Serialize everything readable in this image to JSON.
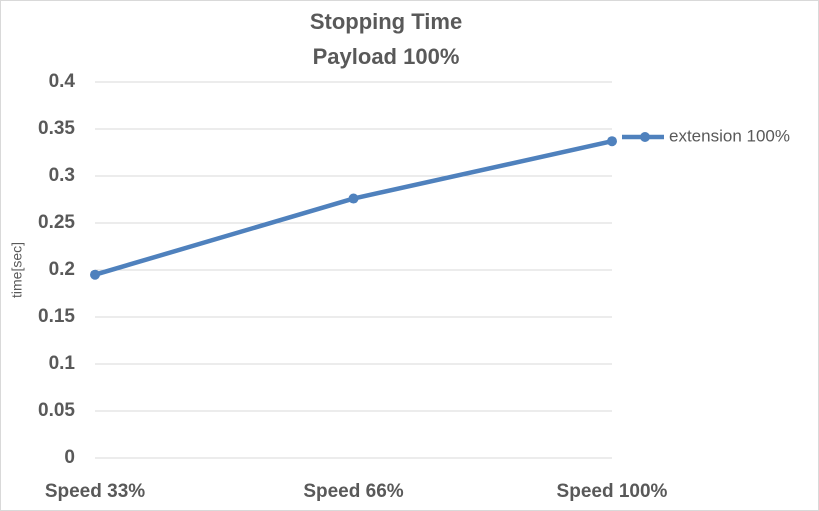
{
  "chart_data": {
    "type": "line",
    "title": "Stopping Time",
    "subtitle": "Payload 100%",
    "y_label": "time[sec]",
    "categories": [
      "Speed 33%",
      "Speed 66%",
      "Speed 100%"
    ],
    "series": [
      {
        "name": "extension 100%",
        "color": "#4f81bd",
        "values": [
          0.195,
          0.276,
          0.337
        ]
      }
    ],
    "ylim": [
      0,
      0.4
    ],
    "yticks": [
      0,
      0.05,
      0.1,
      0.15,
      0.2,
      0.25,
      0.3,
      0.35,
      0.4
    ],
    "grid": true,
    "legend": "right"
  }
}
